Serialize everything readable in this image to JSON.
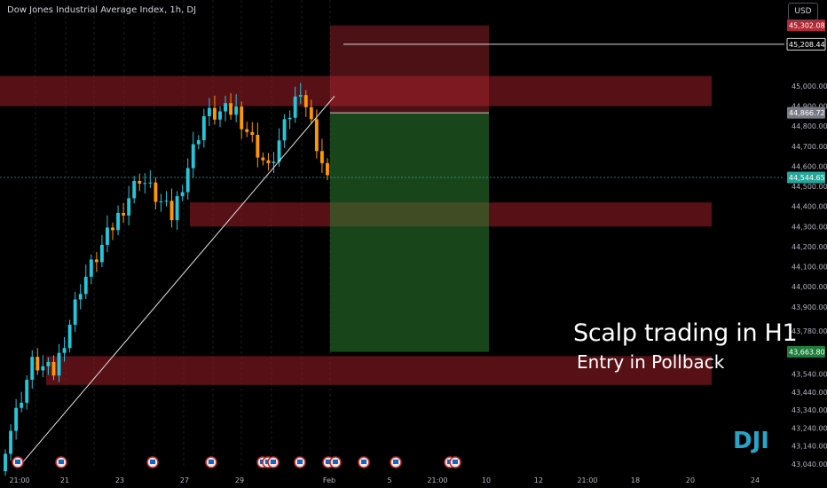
{
  "header": {
    "title": "Dow Jones Industrial Average Index, 1h, DJ",
    "currency": "USD"
  },
  "annotations": {
    "headline": "Scalp trading in H1",
    "subline": "Entry in Pollback",
    "symbol": "DJI"
  },
  "price_labels": [
    {
      "value": "45,302.08",
      "color": "#b22833"
    },
    {
      "value": "45,208.44",
      "color": "#ffffff"
    },
    {
      "value": "44,866.72",
      "color": "#787b86"
    },
    {
      "value": "44,544.65",
      "color": "#26a69a"
    },
    {
      "value": "43,663.80",
      "color": "#1e7d3a"
    }
  ],
  "colors": {
    "up": "#26c6da",
    "down": "#ff9800",
    "zone": "#8c1c24",
    "target": "#2e7d32",
    "stop": "#b22833",
    "background": "#000000"
  },
  "event_icons": "flag-icon",
  "chart_data": {
    "type": "candlestick",
    "title": "Dow Jones Industrial Average Index, 1h, DJ",
    "interval": "1h",
    "y_axis_ticks": [
      "45,000.00",
      "44,900.00",
      "44,800.00",
      "44,700.00",
      "44,600.00",
      "44,500.00",
      "44,400.00",
      "44,300.00",
      "44,200.00",
      "44,100.00",
      "44,000.00",
      "43,900.00",
      "43,780.00",
      "43,540.00",
      "43,440.00",
      "43,340.00",
      "43,240.00",
      "43,140.00",
      "43,040.00"
    ],
    "x_axis_ticks": [
      "21:00",
      "21",
      "23",
      "27",
      "29",
      "Feb",
      "5",
      "21:00",
      "10",
      "12",
      "21:00",
      "18",
      "20",
      "24"
    ],
    "ylim": [
      43000,
      45500
    ],
    "grid": true,
    "close_segments": [
      {
        "from": 43050,
        "to": 43600,
        "n": 6
      },
      {
        "from": 43600,
        "to": 43550,
        "n": 4
      },
      {
        "from": 43550,
        "to": 44000,
        "n": 5
      },
      {
        "from": 44000,
        "to": 44250,
        "n": 5
      },
      {
        "from": 44250,
        "to": 44550,
        "n": 6
      },
      {
        "from": 44550,
        "to": 44350,
        "n": 6
      },
      {
        "from": 44350,
        "to": 44850,
        "n": 6
      },
      {
        "from": 44850,
        "to": 44880,
        "n": 6
      },
      {
        "from": 44880,
        "to": 44580,
        "n": 6
      },
      {
        "from": 44580,
        "to": 45000,
        "n": 6
      },
      {
        "from": 45000,
        "to": 44520,
        "n": 5
      }
    ],
    "zones": [
      {
        "label": "supply-zone",
        "y_top": 45050,
        "y_bottom": 44900
      },
      {
        "label": "mid-zone",
        "y_top": 44420,
        "y_bottom": 44300
      },
      {
        "label": "demand-zone",
        "y_top": 43640,
        "y_bottom": 43480
      }
    ],
    "position": {
      "type": "short",
      "stop": 45302.08,
      "entry": 44866.72,
      "target": 43663.8
    },
    "trendline": {
      "from": 43040,
      "to": 44950
    },
    "reference_line": 45208.44
  }
}
